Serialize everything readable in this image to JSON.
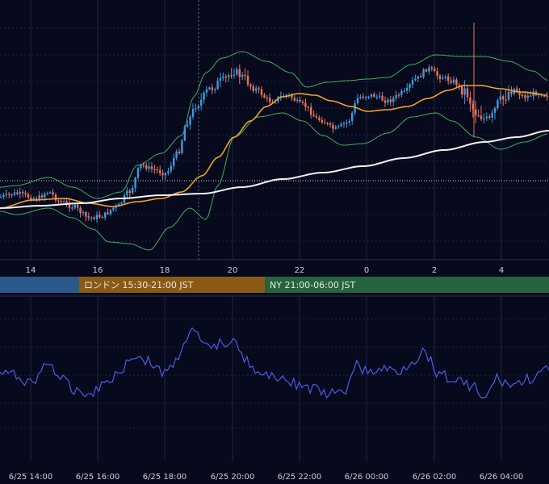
{
  "chart_data": [
    {
      "type": "candlestick",
      "x_axis_ticks": [
        "14",
        "16",
        "18",
        "20",
        "22",
        "0",
        "2",
        "4"
      ],
      "overlays": [
        "bollinger-bands",
        "moving-average-orange",
        "moving-average-white"
      ],
      "colors": {
        "up": "#3a9be0",
        "down": "#e8735e",
        "bands": "#3fae62",
        "ma_fast": "#f0a030",
        "ma_slow": "#f2f2f2",
        "background": "#070a1c",
        "grid": "#1e2640"
      }
    },
    {
      "type": "line",
      "x_axis_ticks": [
        "6/25 14:00",
        "6/25 16:00",
        "6/25 18:00",
        "6/25 20:00",
        "6/25 22:00",
        "6/26 00:00",
        "6/26 02:00",
        "6/26 04:00"
      ],
      "colors": {
        "line": "#4a5ce8"
      }
    }
  ],
  "sessions": [
    {
      "label": "",
      "color": "#2a5a8c"
    },
    {
      "label": "ロンドン 15:30-21:00 JST",
      "color": "#8a5a14"
    },
    {
      "label": "NY 21:00-06:00 JST",
      "color": "#26643e"
    }
  ]
}
